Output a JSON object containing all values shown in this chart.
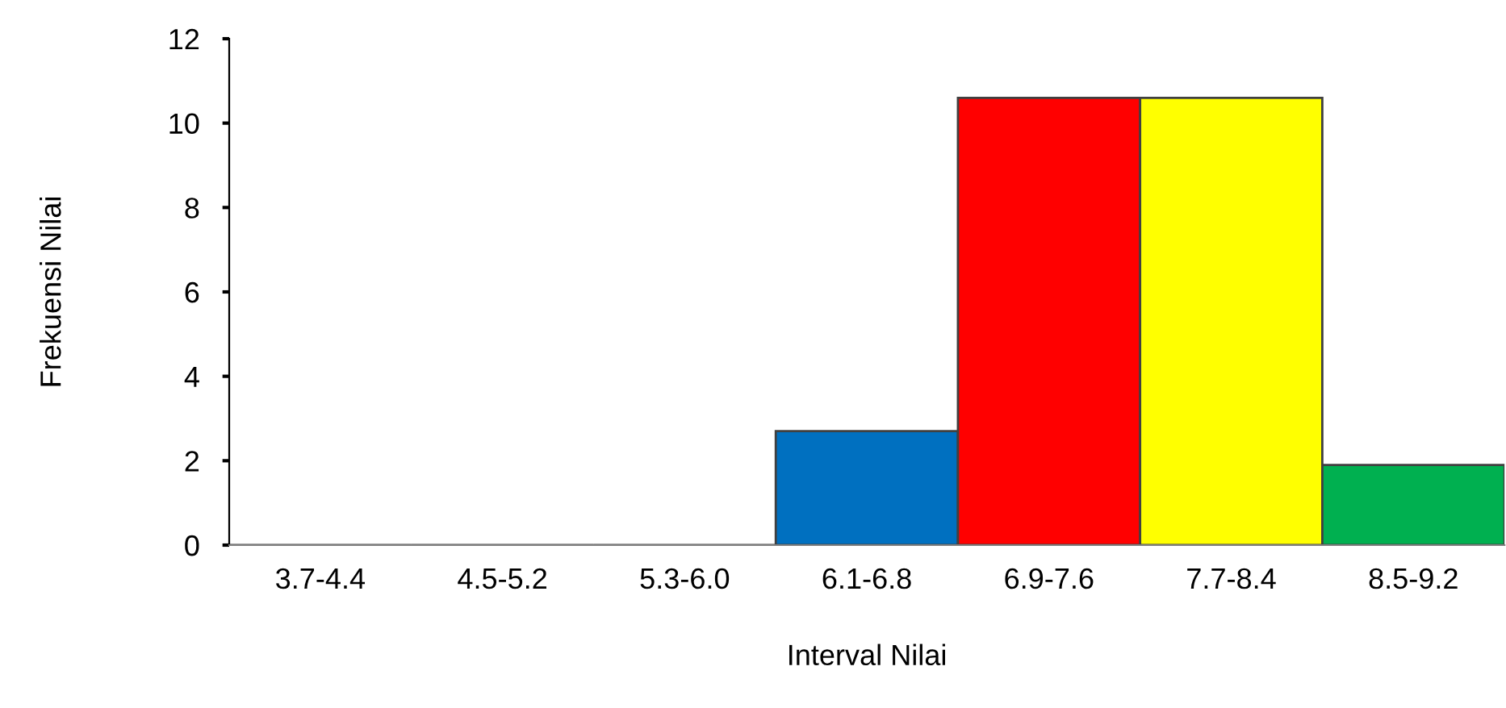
{
  "chart_data": {
    "type": "bar",
    "xlabel": "Interval Nilai",
    "ylabel": "Frekuensi Nilai",
    "categories": [
      "3.7-4.4",
      "4.5-5.2",
      "5.3-6.0",
      "6.1-6.8",
      "6.9-7.6",
      "7.7-8.4",
      "8.5-9.2"
    ],
    "values": [
      0,
      0,
      0,
      2.7,
      10.6,
      10.6,
      1.9
    ],
    "colors": [
      "#0070c0",
      "#0070c0",
      "#0070c0",
      "#0070c0",
      "#ff0000",
      "#ffff00",
      "#00b050"
    ],
    "ylim": [
      0,
      12
    ],
    "yticks": [
      0,
      2,
      4,
      6,
      8,
      10,
      12
    ],
    "grid": false
  }
}
